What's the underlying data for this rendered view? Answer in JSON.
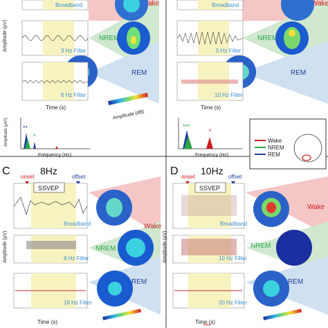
{
  "panel_A": {
    "broadband_label": "Broadband",
    "filter_3": "3 Hz Filter",
    "filter_6": "6 Hz Filter",
    "ylabel": "Amplitude (μV)",
    "xlabel_time": "Time (s)",
    "time_ticks": [
      "-1",
      "0",
      "1",
      "2",
      "3",
      "4",
      "5"
    ],
    "amp_ticks_top": [
      "1",
      "0",
      "-1"
    ],
    "amp_ticks_mid": [
      "4",
      "2",
      "0",
      "-2",
      "-4"
    ],
    "amp_ticks_bot": [
      "4",
      "2",
      "0",
      "-2"
    ],
    "state_wake": "Wake",
    "state_nrem": "NREM",
    "state_rem": "REM"
  },
  "panel_B": {
    "broadband_label": "Broadband",
    "filter_5": "5 Hz Filter",
    "filter_10": "10 Hz Filter",
    "xlabel_time": "Time (s)",
    "time_ticks": [
      "-1",
      "0",
      "1",
      "2",
      "3",
      "4",
      "5"
    ],
    "state_wake": "Wake",
    "state_nrem": "NREM",
    "state_rem": "REM"
  },
  "colorbar": {
    "ticks": [
      "-15",
      "-9",
      "-3",
      "3",
      "9",
      "15"
    ],
    "label": "Amplitude (dB)"
  },
  "spectra": {
    "ylabel": "Amplitude (μV²)",
    "xlabel": "Frequency (Hz)",
    "y_ticks": [
      "4",
      "3",
      "2",
      "1",
      "0"
    ],
    "x_ticks": [
      "5",
      "10",
      "15"
    ],
    "sig_A_5hz": "**",
    "sig_A_5hz_green": "*",
    "sig_B_5hz": "***",
    "sig_B_10hz": "*"
  },
  "legend": {
    "items": [
      {
        "label": "Wake",
        "color": "#cc1f1f"
      },
      {
        "label": "NREM",
        "color": "#2aa84a"
      },
      {
        "label": "REM",
        "color": "#1f3e9c"
      }
    ]
  },
  "panel_C": {
    "letter": "C",
    "freq": "8Hz",
    "onset": "onset",
    "offset": "offset",
    "ssvep": "SSVEP",
    "broadband_label": "Broadband",
    "filter_8": "8 Hz Filter",
    "filter_16": "16 Hz Filter",
    "ylabel": "Amplitude (μV)",
    "xlabel_time": "Time (s)",
    "time_ticks": [
      "-1",
      "0",
      "1",
      "2",
      "3",
      "4",
      "5"
    ],
    "amp_ticks_top": [
      "4",
      "2",
      "0",
      "-2",
      "-4"
    ],
    "amp_ticks_mid": [
      "4",
      "2",
      "0",
      "-2",
      "-4"
    ],
    "amp_ticks_bot": [
      "4",
      "2",
      "0",
      "-2",
      "-4"
    ],
    "state_wake": "Wake",
    "state_nrem": "NREM",
    "state_rem": "REM"
  },
  "panel_D": {
    "letter": "D",
    "freq": "10Hz",
    "onset": "onset",
    "offset": "offset",
    "ssvep": "SSVEP",
    "broadband_label": "Broadband",
    "filter_10": "10 Hz Filter",
    "filter_20": "20 Hz Filter",
    "ylabel": "Amplitude (μV)",
    "xlabel_time": "Time (s)",
    "time_ticks": [
      "-1",
      "0",
      "1",
      "2",
      "3",
      "4",
      "5"
    ],
    "state_wake": "Wake",
    "state_nrem": "NREM",
    "state_rem": "REM",
    "sig_bottom": "***"
  },
  "colors": {
    "wake_bg": "#f5c6c6",
    "nrem_bg": "#cfe8cf",
    "rem_bg": "#cfe0f0",
    "stim_bg": "#f7f3c0",
    "wake": "#cc1f1f",
    "nrem": "#2aa84a",
    "rem": "#1f3e9c"
  }
}
